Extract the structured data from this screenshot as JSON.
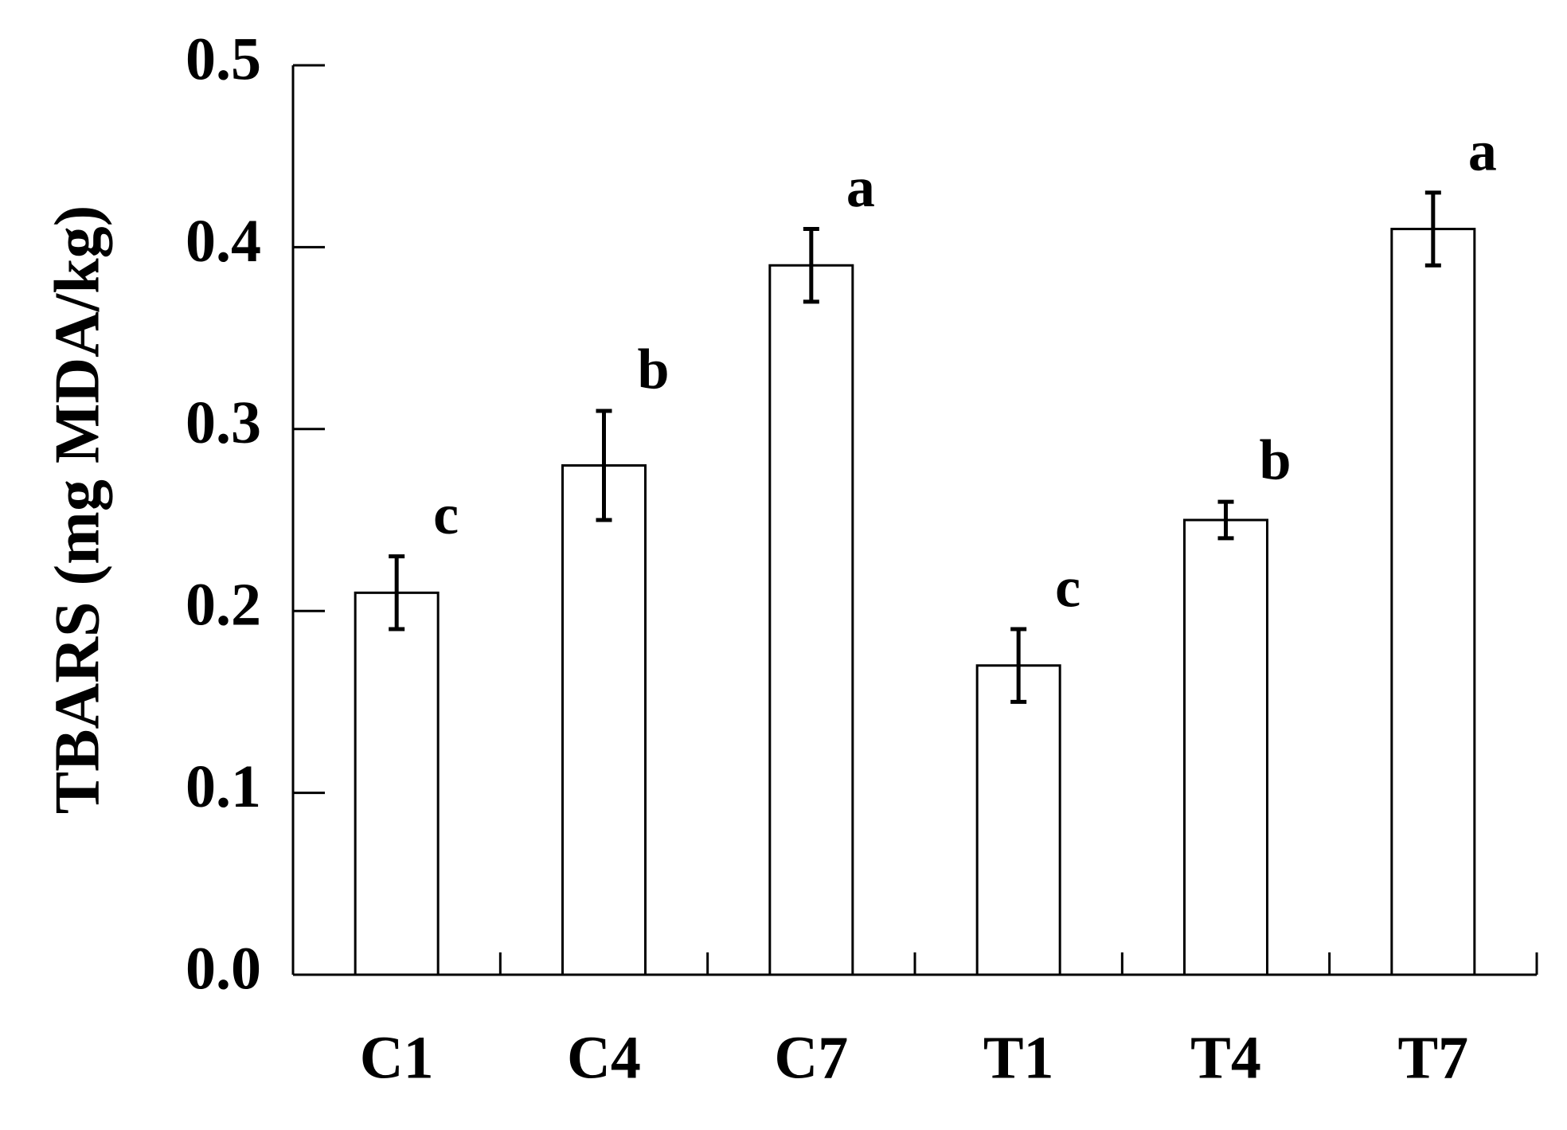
{
  "chart_data": {
    "type": "bar",
    "y_label": "TBARS (mg MDA/kg)",
    "categories": [
      "C1",
      "C4",
      "C7",
      "T1",
      "T4",
      "T7"
    ],
    "values": [
      0.21,
      0.28,
      0.39,
      0.17,
      0.25,
      0.41
    ],
    "errors": [
      0.02,
      0.03,
      0.02,
      0.02,
      0.01,
      0.02
    ],
    "significance_letters": [
      "c",
      "b",
      "a",
      "c",
      "b",
      "a"
    ],
    "color": "#ffffff",
    "ylim": [
      0,
      0.5
    ],
    "yticks": [
      {
        "value": 0,
        "label": "0.0"
      },
      0.1,
      0.2,
      0.3,
      0.4,
      0.5
    ],
    "grid": false
  }
}
